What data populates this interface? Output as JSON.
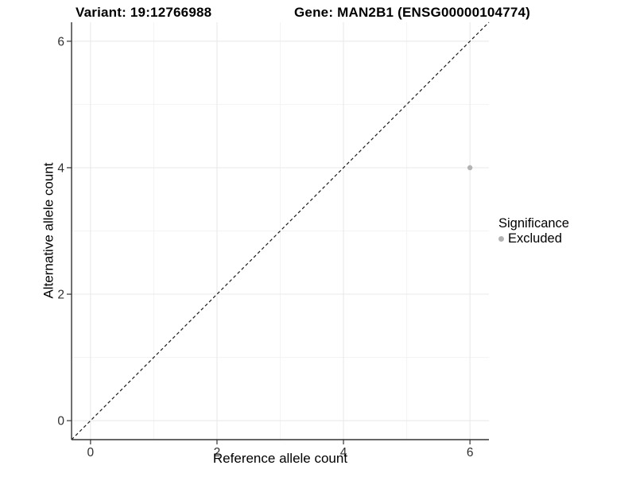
{
  "titles": {
    "variant": "Variant: 19:12766988",
    "gene": "Gene: MAN2B1 (ENSG00000104774)"
  },
  "chart_data": {
    "type": "scatter",
    "xlabel": "Reference allele count",
    "ylabel": "Alternative allele count",
    "xlim": [
      -0.3,
      6.3
    ],
    "ylim": [
      -0.3,
      6.3
    ],
    "x_ticks": [
      0,
      2,
      4,
      6
    ],
    "y_ticks": [
      0,
      2,
      4,
      6
    ],
    "x_minor_ticks": [
      1,
      3,
      5
    ],
    "y_minor_ticks": [
      1,
      3,
      5
    ],
    "grid": true,
    "series": [
      {
        "name": "Excluded",
        "color": "#b3b3b3",
        "points": [
          {
            "x": 6,
            "y": 4
          }
        ]
      }
    ],
    "reference_line": {
      "type": "identity",
      "style": "dashed",
      "color": "#1a1a1a"
    },
    "legend": {
      "title": "Significance",
      "position": "right",
      "items": [
        {
          "label": "Excluded",
          "color": "#b3b3b3"
        }
      ]
    }
  },
  "colors": {
    "background": "#ffffff",
    "grid_major": "#e8e8e8",
    "grid_minor": "#f3f3f3",
    "axis_line": "#333333",
    "tick_text": "#303030"
  }
}
